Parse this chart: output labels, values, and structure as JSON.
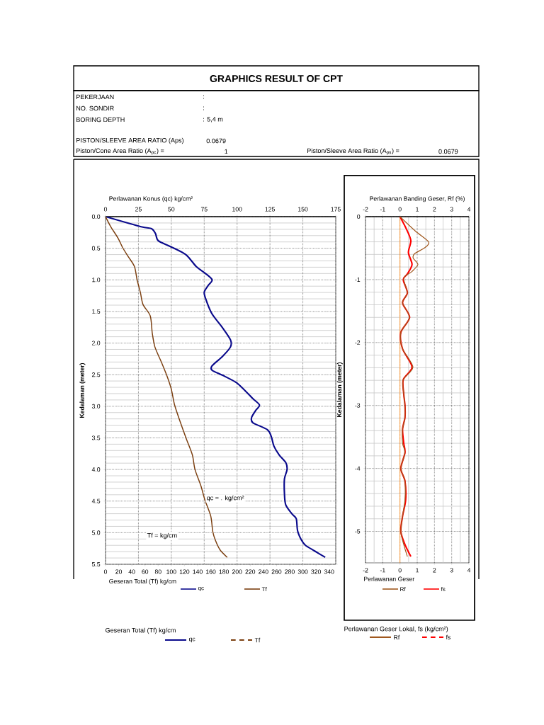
{
  "chart_data": [
    {
      "type": "other",
      "title": "GRAPHICS RESULT OF CPT",
      "annotations": [
        "PEKERJAAN",
        ":",
        "NO. SONDIR",
        ":",
        "BORING DEPTH",
        ": 5,4  m",
        "PISTON/SLEEVE AREA RATIO (Aps)",
        "0.0679",
        "Piston/Cone  Area Ratio (A$_{pc}$) =",
        "1",
        "Piston/Sleeve Area Ratio (A$_{ps}$) =",
        "0.0679"
      ]
    },
    {
      "type": "line",
      "xlabel": "Geseran Total  (Tf) kg/cm",
      "x2label": "Perlawanan Konus (qc) kg/cm²",
      "ylabel": "Kedalaman  (meter)",
      "xlim": [
        0,
        350
      ],
      "xticks": [
        0,
        20,
        40,
        60,
        80,
        100,
        120,
        140,
        160,
        180,
        200,
        220,
        240,
        260,
        280,
        300,
        320,
        340
      ],
      "x2lim": [
        0,
        175
      ],
      "x2ticks": [
        0,
        25,
        50,
        75,
        100,
        125,
        150,
        175
      ],
      "ylim": [
        5.5,
        0
      ],
      "yticks": [
        {
          "value": 0,
          "label": "0.0"
        },
        {
          "value": 0.5,
          "label": "0.5"
        },
        {
          "value": 1,
          "label": "1.0"
        },
        {
          "value": 1.5,
          "label": "1.5"
        },
        {
          "value": 2,
          "label": "2.0"
        },
        {
          "value": 2.5,
          "label": "2.5"
        },
        {
          "value": 3,
          "label": "3.0"
        },
        {
          "value": 3.5,
          "label": "3.5"
        },
        {
          "value": 4,
          "label": "4.0"
        },
        {
          "value": 4.5,
          "label": "4.5"
        },
        {
          "value": 5,
          "label": "5.0"
        },
        {
          "value": 5.5,
          "label": "5.5"
        }
      ],
      "grid": true,
      "legend": "bottom",
      "series": [
        {
          "name": "qc",
          "color": "#0a0a8c",
          "axis": "x2",
          "x": [
            0,
            27,
            35,
            38,
            40,
            49,
            61,
            69,
            76,
            81,
            78,
            75,
            77,
            81,
            89,
            95,
            95,
            89,
            81,
            81,
            89,
            99,
            105,
            112,
            117,
            114,
            111,
            112,
            123,
            126,
            128,
            132,
            137,
            138,
            136,
            136,
            137,
            142,
            145,
            146,
            149,
            152,
            159,
            167
          ],
          "values": [
            0,
            0.16,
            0.19,
            0.27,
            0.38,
            0.47,
            0.6,
            0.79,
            0.9,
            1.0,
            1.09,
            1.2,
            1.35,
            1.54,
            1.76,
            1.95,
            2.06,
            2.21,
            2.36,
            2.43,
            2.51,
            2.62,
            2.73,
            2.88,
            2.98,
            3.07,
            3.18,
            3.26,
            3.37,
            3.48,
            3.63,
            3.77,
            3.89,
            4.0,
            4.15,
            4.38,
            4.56,
            4.71,
            4.78,
            4.97,
            5.12,
            5.2,
            5.29,
            5.39
          ]
        },
        {
          "name": "Tf",
          "color": "#7b3f10",
          "x": [
            0,
            8,
            19,
            26,
            35,
            44,
            48,
            53,
            57,
            68,
            71,
            75,
            84,
            93,
            100,
            105,
            114,
            123,
            132,
            136,
            145,
            151,
            160,
            163,
            167,
            174,
            185
          ],
          "values": [
            0,
            0.16,
            0.34,
            0.49,
            0.64,
            0.79,
            1.0,
            1.2,
            1.39,
            1.57,
            1.84,
            2.06,
            2.28,
            2.51,
            2.73,
            2.98,
            3.26,
            3.52,
            3.77,
            4.0,
            4.26,
            4.48,
            4.74,
            4.98,
            5.12,
            5.27,
            5.39
          ]
        }
      ],
      "annotations": [
        "qc = . kg/cm²",
        "Tf = kg/cm",
        "Geseran Total  (Tf) kg/cm"
      ]
    },
    {
      "type": "line",
      "xlabel": "Perlawanan Geser",
      "x2label": "Perlawanan Banding Geser, Rf (%)",
      "ylabel": "Kedalaman  (meter)",
      "xlim": [
        -2,
        4
      ],
      "xticks": [
        -2,
        -1,
        0,
        1,
        2,
        3,
        4
      ],
      "x2lim": [
        -2,
        4
      ],
      "x2ticks": [
        -2,
        -1,
        0,
        1,
        2,
        3,
        4
      ],
      "ylim": [
        -5.5,
        0
      ],
      "yticks": [
        0,
        -1,
        -2,
        -3,
        -4,
        -5
      ],
      "grid": true,
      "legend": "bottom",
      "ref_lines": [
        {
          "axis": "x",
          "value": 0,
          "color": "#ff9933"
        }
      ],
      "series": [
        {
          "name": "Rf",
          "color": "#a0581e",
          "x": [
            0,
            0.9,
            1.66,
            1.46,
            0.84,
            0.77,
            1.04,
            0.7,
            0.22,
            0.43,
            0.15,
            0.56,
            0.05,
            0.15,
            0.75,
            0.19,
            0.22,
            0.29,
            0.29,
            0.15,
            0.15,
            0.29,
            0.05,
            0.29,
            0.29,
            0.15,
            0.05,
            0.22,
            0.43
          ],
          "values": [
            0,
            -0.23,
            -0.4,
            -0.49,
            -0.59,
            -0.66,
            -0.76,
            -0.87,
            -0.98,
            -1.21,
            -1.37,
            -1.6,
            -1.84,
            -2.1,
            -2.39,
            -2.59,
            -2.82,
            -3.0,
            -3.19,
            -3.38,
            -3.6,
            -3.75,
            -4.0,
            -4.2,
            -4.5,
            -4.76,
            -5.0,
            -5.21,
            -5.4
          ]
        },
        {
          "name": "fs",
          "color": "#ff0000",
          "x": [
            0,
            0.36,
            0.63,
            0.49,
            0.7,
            0.43,
            0.19,
            0.43,
            0.15,
            0.56,
            0.05,
            0.15,
            0.7,
            0.19,
            0.22,
            0.29,
            0.29,
            0.15,
            0.22,
            0.29,
            0.05,
            0.29,
            0.33,
            0.15,
            0.05,
            0.29,
            0.63
          ],
          "values": [
            0,
            -0.19,
            -0.38,
            -0.57,
            -0.76,
            -0.91,
            -1.0,
            -1.21,
            -1.37,
            -1.6,
            -1.84,
            -2.1,
            -2.39,
            -2.59,
            -2.82,
            -3.0,
            -3.19,
            -3.38,
            -3.6,
            -3.75,
            -4.0,
            -4.2,
            -4.5,
            -4.76,
            -5.0,
            -5.21,
            -5.4
          ]
        }
      ],
      "annotations": [
        "Perlawanan Geser Lokal, fs (kg/cm²)"
      ]
    }
  ]
}
